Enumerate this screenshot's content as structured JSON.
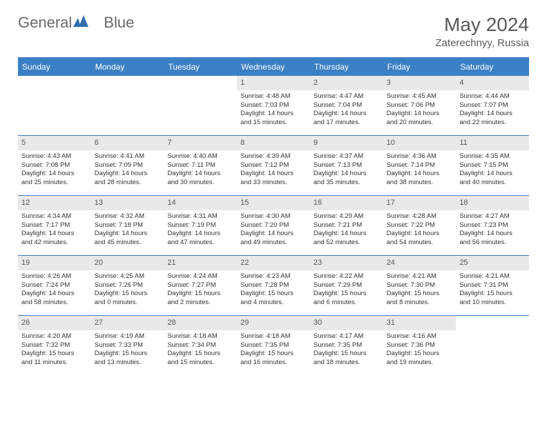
{
  "brand": {
    "name_a": "General",
    "name_b": "Blue"
  },
  "title": "May 2024",
  "location": "Zaterechnyy, Russia",
  "colors": {
    "header_bg": "#3b7fc4",
    "header_text": "#ffffff",
    "daynum_bg": "#e9e9e9",
    "text": "#333333",
    "title_text": "#5a5a5a",
    "brand_text": "#6a6a6a",
    "brand_icon": "#2f6fb0"
  },
  "day_headers": [
    "Sunday",
    "Monday",
    "Tuesday",
    "Wednesday",
    "Thursday",
    "Friday",
    "Saturday"
  ],
  "weeks": [
    [
      {
        "empty": true
      },
      {
        "empty": true
      },
      {
        "empty": true
      },
      {
        "day": "1",
        "sunrise": "Sunrise: 4:48 AM",
        "sunset": "Sunset: 7:03 PM",
        "dl1": "Daylight: 14 hours",
        "dl2": "and 15 minutes."
      },
      {
        "day": "2",
        "sunrise": "Sunrise: 4:47 AM",
        "sunset": "Sunset: 7:04 PM",
        "dl1": "Daylight: 14 hours",
        "dl2": "and 17 minutes."
      },
      {
        "day": "3",
        "sunrise": "Sunrise: 4:45 AM",
        "sunset": "Sunset: 7:06 PM",
        "dl1": "Daylight: 14 hours",
        "dl2": "and 20 minutes."
      },
      {
        "day": "4",
        "sunrise": "Sunrise: 4:44 AM",
        "sunset": "Sunset: 7:07 PM",
        "dl1": "Daylight: 14 hours",
        "dl2": "and 22 minutes."
      }
    ],
    [
      {
        "day": "5",
        "sunrise": "Sunrise: 4:43 AM",
        "sunset": "Sunset: 7:08 PM",
        "dl1": "Daylight: 14 hours",
        "dl2": "and 25 minutes."
      },
      {
        "day": "6",
        "sunrise": "Sunrise: 4:41 AM",
        "sunset": "Sunset: 7:09 PM",
        "dl1": "Daylight: 14 hours",
        "dl2": "and 28 minutes."
      },
      {
        "day": "7",
        "sunrise": "Sunrise: 4:40 AM",
        "sunset": "Sunset: 7:11 PM",
        "dl1": "Daylight: 14 hours",
        "dl2": "and 30 minutes."
      },
      {
        "day": "8",
        "sunrise": "Sunrise: 4:39 AM",
        "sunset": "Sunset: 7:12 PM",
        "dl1": "Daylight: 14 hours",
        "dl2": "and 33 minutes."
      },
      {
        "day": "9",
        "sunrise": "Sunrise: 4:37 AM",
        "sunset": "Sunset: 7:13 PM",
        "dl1": "Daylight: 14 hours",
        "dl2": "and 35 minutes."
      },
      {
        "day": "10",
        "sunrise": "Sunrise: 4:36 AM",
        "sunset": "Sunset: 7:14 PM",
        "dl1": "Daylight: 14 hours",
        "dl2": "and 38 minutes."
      },
      {
        "day": "11",
        "sunrise": "Sunrise: 4:35 AM",
        "sunset": "Sunset: 7:15 PM",
        "dl1": "Daylight: 14 hours",
        "dl2": "and 40 minutes."
      }
    ],
    [
      {
        "day": "12",
        "sunrise": "Sunrise: 4:34 AM",
        "sunset": "Sunset: 7:17 PM",
        "dl1": "Daylight: 14 hours",
        "dl2": "and 42 minutes."
      },
      {
        "day": "13",
        "sunrise": "Sunrise: 4:32 AM",
        "sunset": "Sunset: 7:18 PM",
        "dl1": "Daylight: 14 hours",
        "dl2": "and 45 minutes."
      },
      {
        "day": "14",
        "sunrise": "Sunrise: 4:31 AM",
        "sunset": "Sunset: 7:19 PM",
        "dl1": "Daylight: 14 hours",
        "dl2": "and 47 minutes."
      },
      {
        "day": "15",
        "sunrise": "Sunrise: 4:30 AM",
        "sunset": "Sunset: 7:20 PM",
        "dl1": "Daylight: 14 hours",
        "dl2": "and 49 minutes."
      },
      {
        "day": "16",
        "sunrise": "Sunrise: 4:29 AM",
        "sunset": "Sunset: 7:21 PM",
        "dl1": "Daylight: 14 hours",
        "dl2": "and 52 minutes."
      },
      {
        "day": "17",
        "sunrise": "Sunrise: 4:28 AM",
        "sunset": "Sunset: 7:22 PM",
        "dl1": "Daylight: 14 hours",
        "dl2": "and 54 minutes."
      },
      {
        "day": "18",
        "sunrise": "Sunrise: 4:27 AM",
        "sunset": "Sunset: 7:23 PM",
        "dl1": "Daylight: 14 hours",
        "dl2": "and 56 minutes."
      }
    ],
    [
      {
        "day": "19",
        "sunrise": "Sunrise: 4:26 AM",
        "sunset": "Sunset: 7:24 PM",
        "dl1": "Daylight: 14 hours",
        "dl2": "and 58 minutes."
      },
      {
        "day": "20",
        "sunrise": "Sunrise: 4:25 AM",
        "sunset": "Sunset: 7:26 PM",
        "dl1": "Daylight: 15 hours",
        "dl2": "and 0 minutes."
      },
      {
        "day": "21",
        "sunrise": "Sunrise: 4:24 AM",
        "sunset": "Sunset: 7:27 PM",
        "dl1": "Daylight: 15 hours",
        "dl2": "and 2 minutes."
      },
      {
        "day": "22",
        "sunrise": "Sunrise: 4:23 AM",
        "sunset": "Sunset: 7:28 PM",
        "dl1": "Daylight: 15 hours",
        "dl2": "and 4 minutes."
      },
      {
        "day": "23",
        "sunrise": "Sunrise: 4:22 AM",
        "sunset": "Sunset: 7:29 PM",
        "dl1": "Daylight: 15 hours",
        "dl2": "and 6 minutes."
      },
      {
        "day": "24",
        "sunrise": "Sunrise: 4:21 AM",
        "sunset": "Sunset: 7:30 PM",
        "dl1": "Daylight: 15 hours",
        "dl2": "and 8 minutes."
      },
      {
        "day": "25",
        "sunrise": "Sunrise: 4:21 AM",
        "sunset": "Sunset: 7:31 PM",
        "dl1": "Daylight: 15 hours",
        "dl2": "and 10 minutes."
      }
    ],
    [
      {
        "day": "26",
        "sunrise": "Sunrise: 4:20 AM",
        "sunset": "Sunset: 7:32 PM",
        "dl1": "Daylight: 15 hours",
        "dl2": "and 11 minutes."
      },
      {
        "day": "27",
        "sunrise": "Sunrise: 4:19 AM",
        "sunset": "Sunset: 7:33 PM",
        "dl1": "Daylight: 15 hours",
        "dl2": "and 13 minutes."
      },
      {
        "day": "28",
        "sunrise": "Sunrise: 4:18 AM",
        "sunset": "Sunset: 7:34 PM",
        "dl1": "Daylight: 15 hours",
        "dl2": "and 15 minutes."
      },
      {
        "day": "29",
        "sunrise": "Sunrise: 4:18 AM",
        "sunset": "Sunset: 7:35 PM",
        "dl1": "Daylight: 15 hours",
        "dl2": "and 16 minutes."
      },
      {
        "day": "30",
        "sunrise": "Sunrise: 4:17 AM",
        "sunset": "Sunset: 7:35 PM",
        "dl1": "Daylight: 15 hours",
        "dl2": "and 18 minutes."
      },
      {
        "day": "31",
        "sunrise": "Sunrise: 4:16 AM",
        "sunset": "Sunset: 7:36 PM",
        "dl1": "Daylight: 15 hours",
        "dl2": "and 19 minutes."
      },
      {
        "empty": true
      }
    ]
  ]
}
